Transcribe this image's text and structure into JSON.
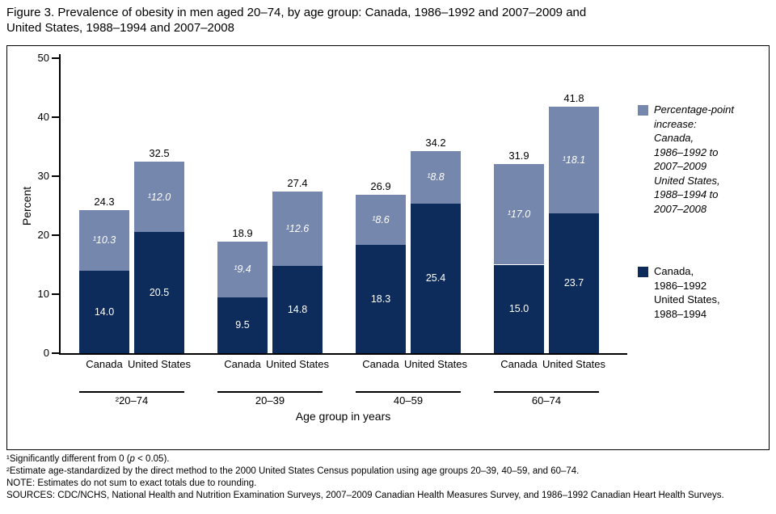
{
  "title": "Figure 3. Prevalence of obesity in men aged 20–74, by age group: Canada, 1986–1992 and 2007–2009 and\nUnited States, 1988–1994 and 2007–2008",
  "chart_data": {
    "type": "bar",
    "stacked": true,
    "xlabel": "Age group in years",
    "ylabel": "Percent",
    "ylim": [
      0,
      50
    ],
    "yticks": [
      0,
      10,
      20,
      30,
      40,
      50
    ],
    "grid": false,
    "legend_position": "right",
    "colors": {
      "baseline": "#0d2c5b",
      "increase": "#7587ad"
    },
    "categories": [
      "²20–74",
      "20–39",
      "40–59",
      "60–74"
    ],
    "bar_labels": [
      "Canada",
      "United States"
    ],
    "groups": [
      {
        "label": "²20–74",
        "bars": [
          {
            "country": "Canada",
            "base": 14.0,
            "base_label": "14.0",
            "increase": 10.3,
            "increase_label": "¹10.3",
            "total": 24.3,
            "total_label": "24.3"
          },
          {
            "country": "United States",
            "base": 20.5,
            "base_label": "20.5",
            "increase": 12.0,
            "increase_label": "¹12.0",
            "total": 32.5,
            "total_label": "32.5"
          }
        ]
      },
      {
        "label": "20–39",
        "bars": [
          {
            "country": "Canada",
            "base": 9.5,
            "base_label": "9.5",
            "increase": 9.4,
            "increase_label": "¹9.4",
            "total": 18.9,
            "total_label": "18.9"
          },
          {
            "country": "United States",
            "base": 14.8,
            "base_label": "14.8",
            "increase": 12.6,
            "increase_label": "¹12.6",
            "total": 27.4,
            "total_label": "27.4"
          }
        ]
      },
      {
        "label": "40–59",
        "bars": [
          {
            "country": "Canada",
            "base": 18.3,
            "base_label": "18.3",
            "increase": 8.6,
            "increase_label": "¹8.6",
            "total": 26.9,
            "total_label": "26.9"
          },
          {
            "country": "United States",
            "base": 25.4,
            "base_label": "25.4",
            "increase": 8.8,
            "increase_label": "¹8.8",
            "total": 34.2,
            "total_label": "34.2"
          }
        ]
      },
      {
        "label": "60–74",
        "bars": [
          {
            "country": "Canada",
            "base": 15.0,
            "base_label": "15.0",
            "increase": 17.0,
            "increase_label": "¹17.0",
            "total": 31.9,
            "total_label": "31.9"
          },
          {
            "country": "United States",
            "base": 23.7,
            "base_label": "23.7",
            "increase": 18.1,
            "increase_label": "¹18.1",
            "total": 41.8,
            "total_label": "41.8"
          }
        ]
      }
    ],
    "legend": {
      "increase_label": "Percentage-point\nincrease:\nCanada,\n1986–1992 to\n2007–2009\nUnited States,\n1988–1994 to\n2007–2008",
      "baseline_label": "Canada,\n1986–1992\nUnited States,\n1988–1994"
    }
  },
  "footnotes": {
    "f1_pre": "¹Significantly different from 0 (",
    "f1_italic": "p",
    "f1_post": " < 0.05).",
    "f2": "²Estimate age-standardized by the direct method to the 2000 United States Census population using age groups 20–39, 40–59, and 60–74.",
    "note": "NOTE: Estimates do not sum to exact totals due to rounding.",
    "sources": "SOURCES: CDC/NCHS, National Health and Nutrition Examination Surveys, 2007–2009 Canadian Health Measures Survey, and 1986–1992 Canadian Heart Health Surveys."
  }
}
